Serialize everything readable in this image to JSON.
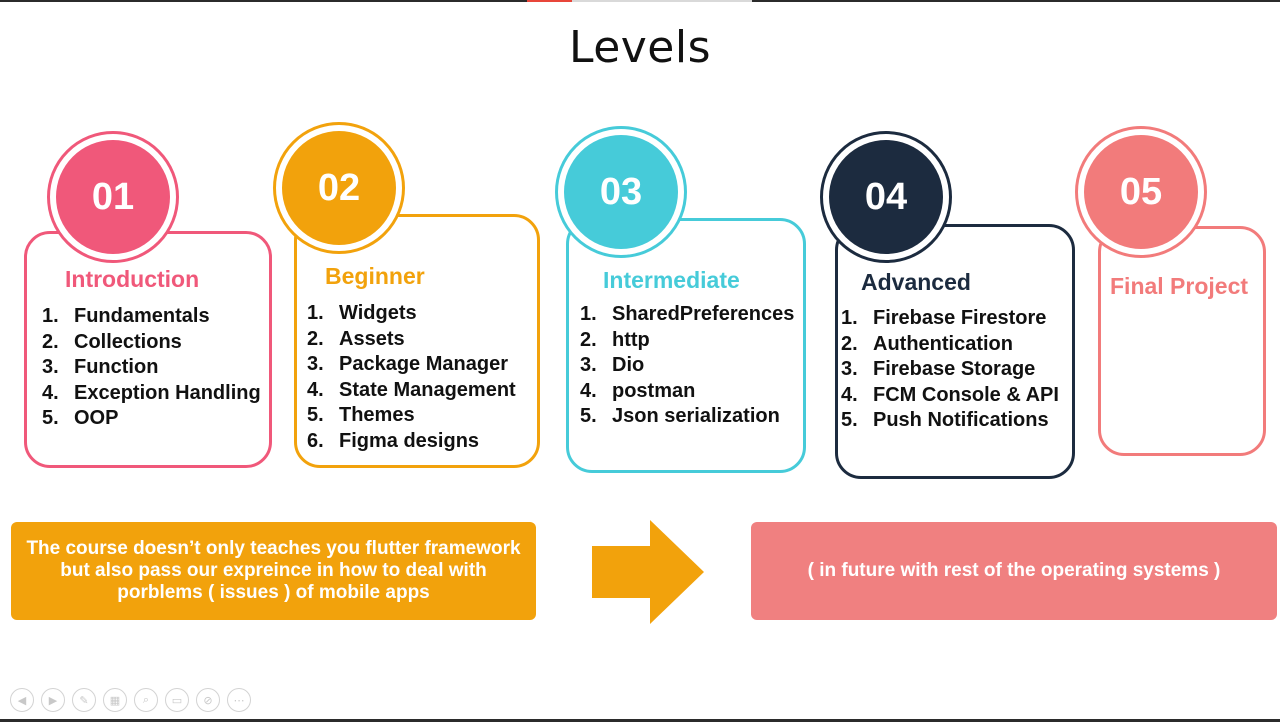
{
  "slide": {
    "title": "Levels"
  },
  "levels": [
    {
      "number": "01",
      "title": "Introduction",
      "color": "#f0587a",
      "items": [
        {
          "n": "1.",
          "text": "Fundamentals"
        },
        {
          "n": "2.",
          "text": "Collections"
        },
        {
          "n": "3.",
          "text": "Function"
        },
        {
          "n": "4.",
          "text": "Exception Handling"
        },
        {
          "n": "5.",
          "text": "OOP"
        }
      ]
    },
    {
      "number": "02",
      "title": "Beginner",
      "color": "#f2a20c",
      "items": [
        {
          "n": "1.",
          "text": "Widgets"
        },
        {
          "n": "2.",
          "text": "Assets"
        },
        {
          "n": "3.",
          "text": "Package Manager"
        },
        {
          "n": "4.",
          "text": "State Management"
        },
        {
          "n": "5.",
          "text": "Themes"
        },
        {
          "n": "6.",
          "text": "Figma designs"
        }
      ]
    },
    {
      "number": "03",
      "title": "Intermediate",
      "color": "#46cbd9",
      "items": [
        {
          "n": "1.",
          "text": "SharedPreferences"
        },
        {
          "n": "2.",
          "text": "http"
        },
        {
          "n": "3.",
          "text": "Dio"
        },
        {
          "n": "4.",
          "text": "postman"
        },
        {
          "n": "5.",
          "text": "Json serialization"
        }
      ]
    },
    {
      "number": "04",
      "title": "Advanced",
      "color": "#1c2b3f",
      "items": [
        {
          "n": "1.",
          "text": "Firebase Firestore"
        },
        {
          "n": "2.",
          "text": "Authentication"
        },
        {
          "n": "3.",
          "text": "Firebase Storage"
        },
        {
          "n": "4.",
          "text": "FCM Console & API"
        },
        {
          "n": "5.",
          "text": "Push Notifications"
        }
      ]
    },
    {
      "number": "05",
      "title": "Final Project",
      "color": "#f27b7b",
      "items": []
    }
  ],
  "notes": {
    "left": "The course doesn’t only teaches you flutter framework but also pass our expreince in how to deal with porblems ( issues ) of mobile apps",
    "left_color": "#f2a20c",
    "arrow_color": "#f2a20c",
    "right": "( in future with rest of the operating systems )",
    "right_color": "#f08080"
  },
  "toolbar": {
    "icons": [
      "previous-icon",
      "next-icon",
      "pen-icon",
      "slides-icon",
      "zoom-icon",
      "subtitles-icon",
      "camera-off-icon",
      "more-icon"
    ]
  }
}
